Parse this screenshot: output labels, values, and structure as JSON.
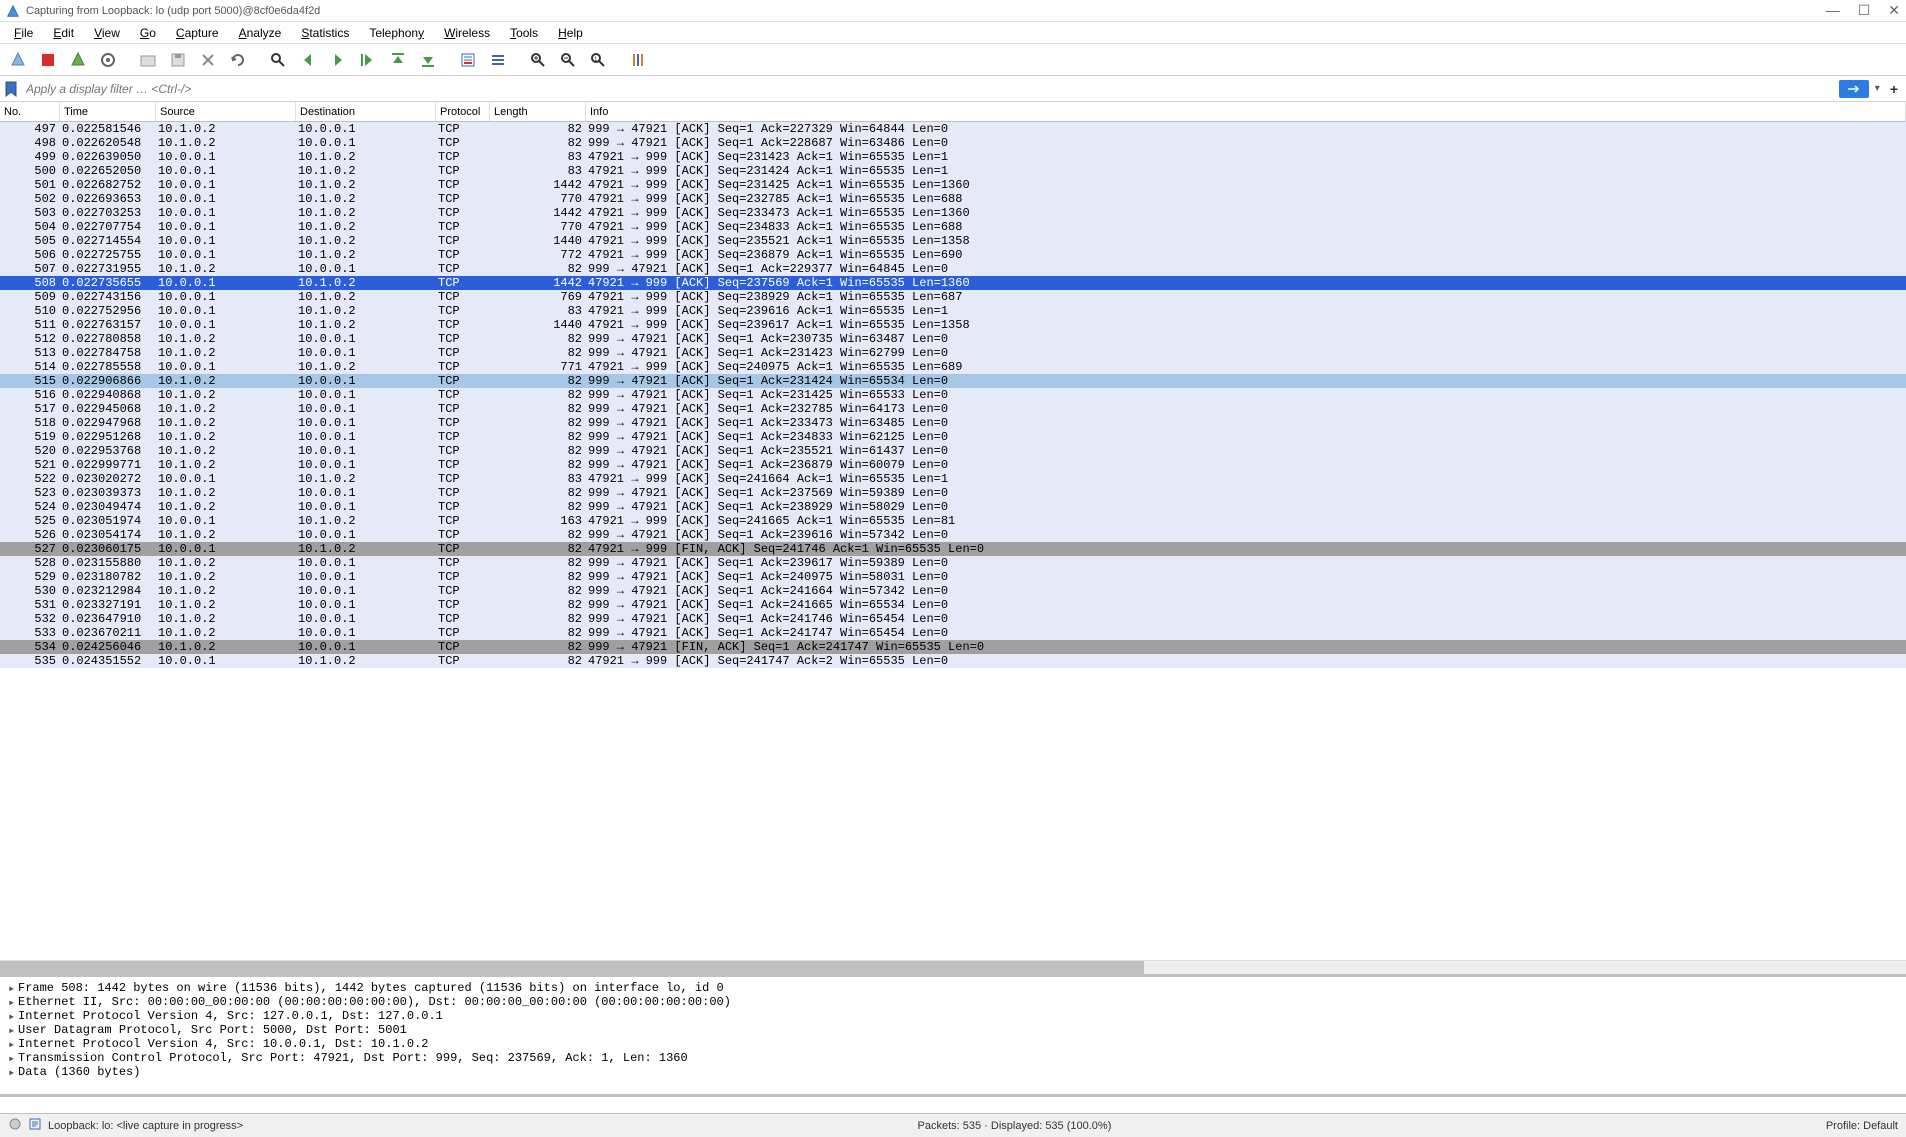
{
  "window": {
    "title": "Capturing from Loopback: lo (udp port 5000)@8cf0e6da4f2d"
  },
  "menu": {
    "items": [
      "File",
      "Edit",
      "View",
      "Go",
      "Capture",
      "Analyze",
      "Statistics",
      "Telephony",
      "Wireless",
      "Tools",
      "Help"
    ]
  },
  "filter": {
    "placeholder": "Apply a display filter … <Ctrl-/>"
  },
  "columns": {
    "no": "No.",
    "time": "Time",
    "source": "Source",
    "destination": "Destination",
    "protocol": "Protocol",
    "length": "Length",
    "info": "Info"
  },
  "row_background_default": "#e6e9f8",
  "row_background_selected": "#2b5fd9",
  "row_background_highlight": "#a7c7e7",
  "row_background_special": "#a0a0a0",
  "packets": [
    {
      "no": "497",
      "time": "0.022581546",
      "src": "10.1.0.2",
      "dst": "10.0.0.1",
      "proto": "TCP",
      "len": "82",
      "info": "999 → 47921 [ACK] Seq=1 Ack=227329 Win=64844 Len=0",
      "hl": "normal"
    },
    {
      "no": "498",
      "time": "0.022620548",
      "src": "10.1.0.2",
      "dst": "10.0.0.1",
      "proto": "TCP",
      "len": "82",
      "info": "999 → 47921 [ACK] Seq=1 Ack=228687 Win=63486 Len=0",
      "hl": "normal"
    },
    {
      "no": "499",
      "time": "0.022639050",
      "src": "10.0.0.1",
      "dst": "10.1.0.2",
      "proto": "TCP",
      "len": "83",
      "info": "47921 → 999 [ACK] Seq=231423 Ack=1 Win=65535 Len=1",
      "hl": "normal"
    },
    {
      "no": "500",
      "time": "0.022652050",
      "src": "10.0.0.1",
      "dst": "10.1.0.2",
      "proto": "TCP",
      "len": "83",
      "info": "47921 → 999 [ACK] Seq=231424 Ack=1 Win=65535 Len=1",
      "hl": "normal"
    },
    {
      "no": "501",
      "time": "0.022682752",
      "src": "10.0.0.1",
      "dst": "10.1.0.2",
      "proto": "TCP",
      "len": "1442",
      "info": "47921 → 999 [ACK] Seq=231425 Ack=1 Win=65535 Len=1360",
      "hl": "normal"
    },
    {
      "no": "502",
      "time": "0.022693653",
      "src": "10.0.0.1",
      "dst": "10.1.0.2",
      "proto": "TCP",
      "len": "770",
      "info": "47921 → 999 [ACK] Seq=232785 Ack=1 Win=65535 Len=688",
      "hl": "normal"
    },
    {
      "no": "503",
      "time": "0.022703253",
      "src": "10.0.0.1",
      "dst": "10.1.0.2",
      "proto": "TCP",
      "len": "1442",
      "info": "47921 → 999 [ACK] Seq=233473 Ack=1 Win=65535 Len=1360",
      "hl": "normal"
    },
    {
      "no": "504",
      "time": "0.022707754",
      "src": "10.0.0.1",
      "dst": "10.1.0.2",
      "proto": "TCP",
      "len": "770",
      "info": "47921 → 999 [ACK] Seq=234833 Ack=1 Win=65535 Len=688",
      "hl": "normal"
    },
    {
      "no": "505",
      "time": "0.022714554",
      "src": "10.0.0.1",
      "dst": "10.1.0.2",
      "proto": "TCP",
      "len": "1440",
      "info": "47921 → 999 [ACK] Seq=235521 Ack=1 Win=65535 Len=1358",
      "hl": "normal"
    },
    {
      "no": "506",
      "time": "0.022725755",
      "src": "10.0.0.1",
      "dst": "10.1.0.2",
      "proto": "TCP",
      "len": "772",
      "info": "47921 → 999 [ACK] Seq=236879 Ack=1 Win=65535 Len=690",
      "hl": "normal"
    },
    {
      "no": "507",
      "time": "0.022731955",
      "src": "10.1.0.2",
      "dst": "10.0.0.1",
      "proto": "TCP",
      "len": "82",
      "info": "999 → 47921 [ACK] Seq=1 Ack=229377 Win=64845 Len=0",
      "hl": "normal"
    },
    {
      "no": "508",
      "time": "0.022735655",
      "src": "10.0.0.1",
      "dst": "10.1.0.2",
      "proto": "TCP",
      "len": "1442",
      "info": "47921 → 999 [ACK] Seq=237569 Ack=1 Win=65535 Len=1360",
      "hl": "selected"
    },
    {
      "no": "509",
      "time": "0.022743156",
      "src": "10.0.0.1",
      "dst": "10.1.0.2",
      "proto": "TCP",
      "len": "769",
      "info": "47921 → 999 [ACK] Seq=238929 Ack=1 Win=65535 Len=687",
      "hl": "normal"
    },
    {
      "no": "510",
      "time": "0.022752956",
      "src": "10.0.0.1",
      "dst": "10.1.0.2",
      "proto": "TCP",
      "len": "83",
      "info": "47921 → 999 [ACK] Seq=239616 Ack=1 Win=65535 Len=1",
      "hl": "normal"
    },
    {
      "no": "511",
      "time": "0.022763157",
      "src": "10.0.0.1",
      "dst": "10.1.0.2",
      "proto": "TCP",
      "len": "1440",
      "info": "47921 → 999 [ACK] Seq=239617 Ack=1 Win=65535 Len=1358",
      "hl": "normal"
    },
    {
      "no": "512",
      "time": "0.022780858",
      "src": "10.1.0.2",
      "dst": "10.0.0.1",
      "proto": "TCP",
      "len": "82",
      "info": "999 → 47921 [ACK] Seq=1 Ack=230735 Win=63487 Len=0",
      "hl": "normal"
    },
    {
      "no": "513",
      "time": "0.022784758",
      "src": "10.1.0.2",
      "dst": "10.0.0.1",
      "proto": "TCP",
      "len": "82",
      "info": "999 → 47921 [ACK] Seq=1 Ack=231423 Win=62799 Len=0",
      "hl": "normal"
    },
    {
      "no": "514",
      "time": "0.022785558",
      "src": "10.0.0.1",
      "dst": "10.1.0.2",
      "proto": "TCP",
      "len": "771",
      "info": "47921 → 999 [ACK] Seq=240975 Ack=1 Win=65535 Len=689",
      "hl": "normal"
    },
    {
      "no": "515",
      "time": "0.022906866",
      "src": "10.1.0.2",
      "dst": "10.0.0.1",
      "proto": "TCP",
      "len": "82",
      "info": "999 → 47921 [ACK] Seq=1 Ack=231424 Win=65534 Len=0",
      "hl": "highlight"
    },
    {
      "no": "516",
      "time": "0.022940868",
      "src": "10.1.0.2",
      "dst": "10.0.0.1",
      "proto": "TCP",
      "len": "82",
      "info": "999 → 47921 [ACK] Seq=1 Ack=231425 Win=65533 Len=0",
      "hl": "normal"
    },
    {
      "no": "517",
      "time": "0.022945068",
      "src": "10.1.0.2",
      "dst": "10.0.0.1",
      "proto": "TCP",
      "len": "82",
      "info": "999 → 47921 [ACK] Seq=1 Ack=232785 Win=64173 Len=0",
      "hl": "normal"
    },
    {
      "no": "518",
      "time": "0.022947968",
      "src": "10.1.0.2",
      "dst": "10.0.0.1",
      "proto": "TCP",
      "len": "82",
      "info": "999 → 47921 [ACK] Seq=1 Ack=233473 Win=63485 Len=0",
      "hl": "normal"
    },
    {
      "no": "519",
      "time": "0.022951268",
      "src": "10.1.0.2",
      "dst": "10.0.0.1",
      "proto": "TCP",
      "len": "82",
      "info": "999 → 47921 [ACK] Seq=1 Ack=234833 Win=62125 Len=0",
      "hl": "normal"
    },
    {
      "no": "520",
      "time": "0.022953768",
      "src": "10.1.0.2",
      "dst": "10.0.0.1",
      "proto": "TCP",
      "len": "82",
      "info": "999 → 47921 [ACK] Seq=1 Ack=235521 Win=61437 Len=0",
      "hl": "normal"
    },
    {
      "no": "521",
      "time": "0.022999771",
      "src": "10.1.0.2",
      "dst": "10.0.0.1",
      "proto": "TCP",
      "len": "82",
      "info": "999 → 47921 [ACK] Seq=1 Ack=236879 Win=60079 Len=0",
      "hl": "normal"
    },
    {
      "no": "522",
      "time": "0.023020272",
      "src": "10.0.0.1",
      "dst": "10.1.0.2",
      "proto": "TCP",
      "len": "83",
      "info": "47921 → 999 [ACK] Seq=241664 Ack=1 Win=65535 Len=1",
      "hl": "normal"
    },
    {
      "no": "523",
      "time": "0.023039373",
      "src": "10.1.0.2",
      "dst": "10.0.0.1",
      "proto": "TCP",
      "len": "82",
      "info": "999 → 47921 [ACK] Seq=1 Ack=237569 Win=59389 Len=0",
      "hl": "normal"
    },
    {
      "no": "524",
      "time": "0.023049474",
      "src": "10.1.0.2",
      "dst": "10.0.0.1",
      "proto": "TCP",
      "len": "82",
      "info": "999 → 47921 [ACK] Seq=1 Ack=238929 Win=58029 Len=0",
      "hl": "normal"
    },
    {
      "no": "525",
      "time": "0.023051974",
      "src": "10.0.0.1",
      "dst": "10.1.0.2",
      "proto": "TCP",
      "len": "163",
      "info": "47921 → 999 [ACK] Seq=241665 Ack=1 Win=65535 Len=81",
      "hl": "normal"
    },
    {
      "no": "526",
      "time": "0.023054174",
      "src": "10.1.0.2",
      "dst": "10.0.0.1",
      "proto": "TCP",
      "len": "82",
      "info": "999 → 47921 [ACK] Seq=1 Ack=239616 Win=57342 Len=0",
      "hl": "normal"
    },
    {
      "no": "527",
      "time": "0.023060175",
      "src": "10.0.0.1",
      "dst": "10.1.0.2",
      "proto": "TCP",
      "len": "82",
      "info": "47921 → 999 [FIN, ACK] Seq=241746 Ack=1 Win=65535 Len=0",
      "hl": "special"
    },
    {
      "no": "528",
      "time": "0.023155880",
      "src": "10.1.0.2",
      "dst": "10.0.0.1",
      "proto": "TCP",
      "len": "82",
      "info": "999 → 47921 [ACK] Seq=1 Ack=239617 Win=59389 Len=0",
      "hl": "normal"
    },
    {
      "no": "529",
      "time": "0.023180782",
      "src": "10.1.0.2",
      "dst": "10.0.0.1",
      "proto": "TCP",
      "len": "82",
      "info": "999 → 47921 [ACK] Seq=1 Ack=240975 Win=58031 Len=0",
      "hl": "normal"
    },
    {
      "no": "530",
      "time": "0.023212984",
      "src": "10.1.0.2",
      "dst": "10.0.0.1",
      "proto": "TCP",
      "len": "82",
      "info": "999 → 47921 [ACK] Seq=1 Ack=241664 Win=57342 Len=0",
      "hl": "normal"
    },
    {
      "no": "531",
      "time": "0.023327191",
      "src": "10.1.0.2",
      "dst": "10.0.0.1",
      "proto": "TCP",
      "len": "82",
      "info": "999 → 47921 [ACK] Seq=1 Ack=241665 Win=65534 Len=0",
      "hl": "normal"
    },
    {
      "no": "532",
      "time": "0.023647910",
      "src": "10.1.0.2",
      "dst": "10.0.0.1",
      "proto": "TCP",
      "len": "82",
      "info": "999 → 47921 [ACK] Seq=1 Ack=241746 Win=65454 Len=0",
      "hl": "normal"
    },
    {
      "no": "533",
      "time": "0.023670211",
      "src": "10.1.0.2",
      "dst": "10.0.0.1",
      "proto": "TCP",
      "len": "82",
      "info": "999 → 47921 [ACK] Seq=1 Ack=241747 Win=65454 Len=0",
      "hl": "normal"
    },
    {
      "no": "534",
      "time": "0.024256046",
      "src": "10.1.0.2",
      "dst": "10.0.0.1",
      "proto": "TCP",
      "len": "82",
      "info": "999 → 47921 [FIN, ACK] Seq=1 Ack=241747 Win=65535 Len=0",
      "hl": "special"
    },
    {
      "no": "535",
      "time": "0.024351552",
      "src": "10.0.0.1",
      "dst": "10.1.0.2",
      "proto": "TCP",
      "len": "82",
      "info": "47921 → 999 [ACK] Seq=241747 Ack=2 Win=65535 Len=0",
      "hl": "normal"
    }
  ],
  "details": [
    "Frame 508: 1442 bytes on wire (11536 bits), 1442 bytes captured (11536 bits) on interface lo, id 0",
    "Ethernet II, Src: 00:00:00_00:00:00 (00:00:00:00:00:00), Dst: 00:00:00_00:00:00 (00:00:00:00:00:00)",
    "Internet Protocol Version 4, Src: 127.0.0.1, Dst: 127.0.0.1",
    "User Datagram Protocol, Src Port: 5000, Dst Port: 5001",
    "Internet Protocol Version 4, Src: 10.0.0.1, Dst: 10.1.0.2",
    "Transmission Control Protocol, Src Port: 47921, Dst Port: 999, Seq: 237569, Ack: 1, Len: 1360",
    "Data (1360 bytes)"
  ],
  "status": {
    "interface": "Loopback: lo: <live capture in progress>",
    "packets": "Packets: 535 · Displayed: 535 (100.0%)",
    "profile": "Profile: Default"
  }
}
